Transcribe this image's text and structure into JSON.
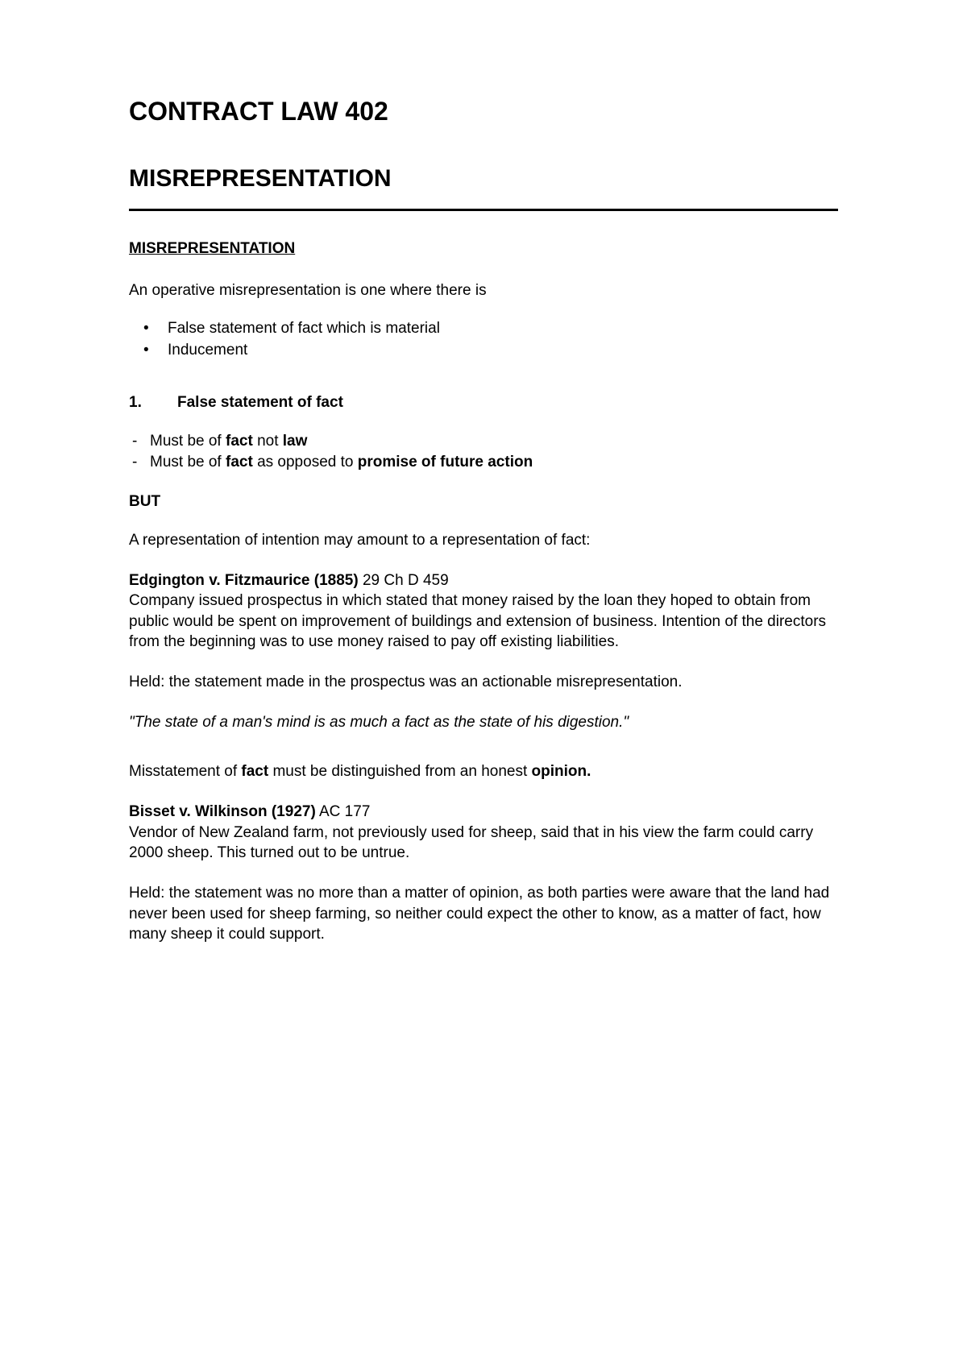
{
  "title": "CONTRACT LAW 402",
  "subtitle": "MISREPRESENTATION",
  "section_heading": "MISREPRESENTATION",
  "intro": "An operative misrepresentation is one where there is",
  "bullets": {
    "b1": "False statement of fact which is material",
    "b2": "Inducement"
  },
  "numbered": {
    "num": "1.",
    "label": "False statement of fact"
  },
  "dash": {
    "d1_pre": "Must be of ",
    "d1_fact": "fact",
    "d1_mid": " not ",
    "d1_law": "law",
    "d2_pre": "Must be of ",
    "d2_fact": "fact",
    "d2_mid": " as opposed to ",
    "d2_promise": "promise of future action"
  },
  "but": "BUT",
  "rep_intention": "A representation of intention may amount to a representation of fact:",
  "case1": {
    "name": "Edgington v. Fitzmaurice (1885)",
    "cite": " 29 Ch D 459",
    "facts": "Company issued prospectus in which stated that money raised by the loan they hoped to obtain from public would be spent on improvement of buildings and extension of business.  Intention of the directors from the beginning was to use money raised to pay off existing liabilities.",
    "held": "Held: the statement made in the prospectus was an actionable misrepresentation.",
    "quote": "\"The state of a man's mind is as much a fact as the state of his digestion.\""
  },
  "misstatement": {
    "pre": "Misstatement of ",
    "fact": "fact",
    "mid": " must be distinguished from an honest ",
    "opinion": "opinion."
  },
  "case2": {
    "name": "Bisset v. Wilkinson (1927)",
    "cite": " AC 177",
    "facts": "Vendor of New Zealand farm, not previously used for sheep, said that in his view the farm could carry 2000 sheep.  This turned out to be untrue.",
    "held": "Held: the statement was no more than a matter of opinion, as both parties were aware that the land had never been used for sheep farming, so neither could expect the other to know, as a matter of fact, how many sheep it could support."
  }
}
